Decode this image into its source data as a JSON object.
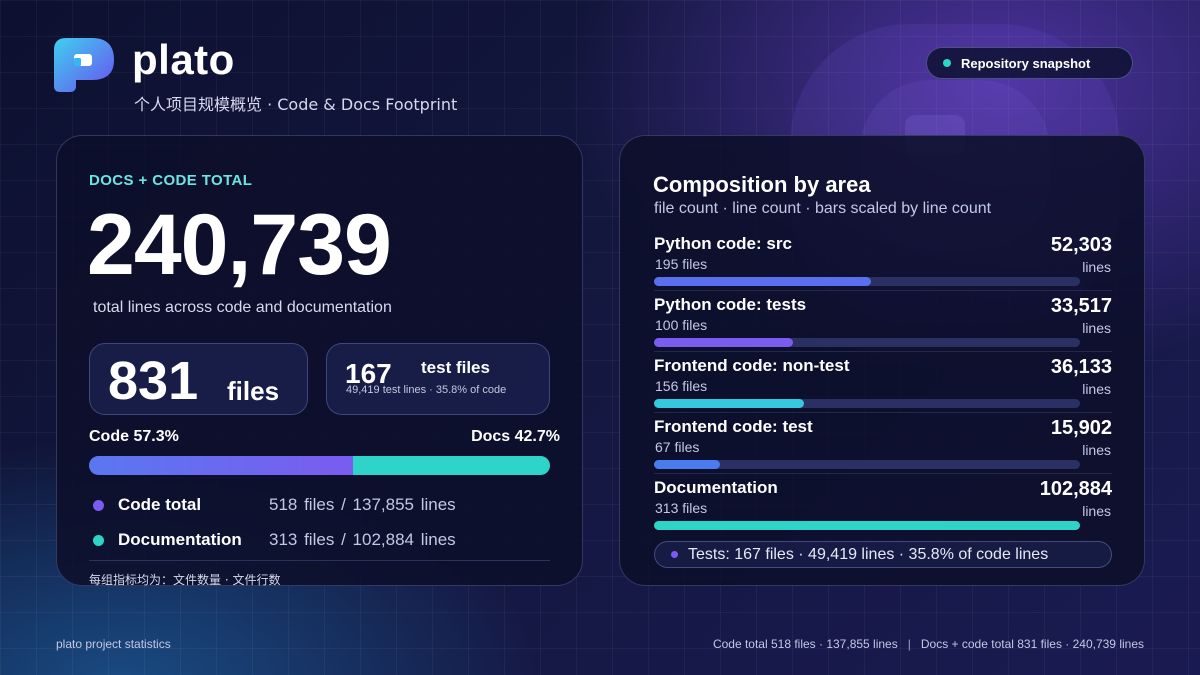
{
  "header": {
    "brand": "plato",
    "subtitle": "个人项目规模概览 · Code & Docs Footprint",
    "snapshot_pill": "Repository snapshot"
  },
  "summary": {
    "eyebrow": "DOCS + CODE TOTAL",
    "total_lines": "240,739",
    "total_caption": "total lines across code and documentation",
    "files_count": "831",
    "files_label": "files",
    "test_files_count": "167",
    "test_files_label": "test files",
    "test_files_sub": "49,419 test lines · 35.8% of code",
    "code_share_label": "Code 57.3%",
    "docs_share_label": "Docs 42.7%",
    "code_share": 57.3,
    "docs_share": 42.7,
    "legend": [
      {
        "name": "Code total",
        "files": "518 files",
        "sep": "/",
        "lines": "137,855 lines",
        "color": "#7a5cf0"
      },
      {
        "name": "Documentation",
        "files": "313 files",
        "sep": "/",
        "lines": "102,884 lines",
        "color": "#2fd4c8"
      }
    ],
    "footnote": "每组指标均为：文件数量 · 文件行数"
  },
  "composition": {
    "title": "Composition by area",
    "subtitle": "file count · line count · bars scaled by line count",
    "unit": "lines",
    "max_lines": 102884,
    "rows": [
      {
        "name": "Python code: src",
        "files": "195 files",
        "value_label": "52,303",
        "lines": 52303,
        "color": "#5a6ff0"
      },
      {
        "name": "Python code: tests",
        "files": "100 files",
        "value_label": "33,517",
        "lines": 33517,
        "color": "#7a5cf0"
      },
      {
        "name": "Frontend code: non-test",
        "files": "156 files",
        "value_label": "36,133",
        "lines": 36133,
        "color": "#35c9e0"
      },
      {
        "name": "Frontend code: test",
        "files": "67 files",
        "value_label": "15,902",
        "lines": 15902,
        "color": "#4a7cf0"
      },
      {
        "name": "Documentation",
        "files": "313 files",
        "value_label": "102,884",
        "lines": 102884,
        "color": "#2fd4c8"
      }
    ],
    "tests_pill": "Tests: 167 files · 49,419 lines · 35.8% of code lines",
    "tests_pill_color": "#7a5cf0"
  },
  "footer": {
    "left": "plato project statistics",
    "right_a": "Code total 518 files · 137,855 lines",
    "divider": "|",
    "right_b": "Docs + code total 831 files · 240,739 lines"
  },
  "colors": {
    "accent_cyan": "#6de3e0",
    "code_purple": "#7a5cf0",
    "docs_teal": "#2fd4c8",
    "snapshot_dot": "#2fd4c8"
  }
}
